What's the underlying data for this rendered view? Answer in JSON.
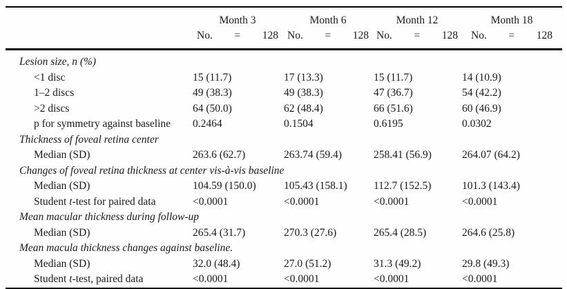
{
  "table": {
    "columns": [
      {
        "month": "Month 3",
        "no_label": "No.",
        "equals": "=",
        "count": "128"
      },
      {
        "month": "Month 6",
        "no_label": "No.",
        "equals": "=",
        "count": "128"
      },
      {
        "month": "Month 12",
        "no_label": "No.",
        "equals": "=",
        "count": "128"
      },
      {
        "month": "Month 18",
        "no_label": "No.",
        "equals": "=",
        "count": "128"
      }
    ],
    "sections": [
      {
        "header": "Lesion size, n (%)",
        "rows": [
          {
            "label": [
              {
                "text": "<1 disc",
                "italic": false
              }
            ],
            "values": [
              "15 (11.7)",
              "17 (13.3)",
              "15 (11.7)",
              "14 (10.9)"
            ]
          },
          {
            "label": [
              {
                "text": "1–2 discs",
                "italic": false
              }
            ],
            "values": [
              "49 (38.3)",
              "49 (38.3)",
              "47 (36.7)",
              "54 (42.2)"
            ]
          },
          {
            "label": [
              {
                "text": ">2 discs",
                "italic": false
              }
            ],
            "values": [
              "64 (50.0)",
              "62 (48.4)",
              "66 (51.6)",
              "60 (46.9)"
            ]
          },
          {
            "label": [
              {
                "text": "p for symmetry against baseline",
                "italic": false
              }
            ],
            "values": [
              "0.2464",
              "0.1504",
              "0.6195",
              "0.0302"
            ]
          }
        ]
      },
      {
        "header": "Thickness of foveal retina center",
        "rows": [
          {
            "label": [
              {
                "text": "Median (SD)",
                "italic": false
              }
            ],
            "values": [
              "263.6 (62.7)",
              "263.74 (59.4)",
              "258.41 (56.9)",
              "264.07 (64.2)"
            ]
          }
        ]
      },
      {
        "header": "Changes of foveal retina thickness at center vis-à-vis baseline",
        "rows": [
          {
            "label": [
              {
                "text": "Median (SD)",
                "italic": false
              }
            ],
            "values": [
              "104.59 (150.0)",
              "105.43 (158.1)",
              "112.7 (152.5)",
              "101.3 (143.4)"
            ]
          },
          {
            "label": [
              {
                "text": "Student ",
                "italic": false
              },
              {
                "text": "t",
                "italic": true
              },
              {
                "text": "-test for paired data",
                "italic": false
              }
            ],
            "values": [
              "<0.0001",
              "<0.0001",
              "<0.0001",
              "<0.0001"
            ]
          }
        ]
      },
      {
        "header": "Mean macular thickness during follow-up",
        "rows": [
          {
            "label": [
              {
                "text": "Median (SD)",
                "italic": false
              }
            ],
            "values": [
              "265.4 (31.7)",
              "270.3 (27.6)",
              "265.4 (28.5)",
              "264.6 (25.8)"
            ]
          }
        ]
      },
      {
        "header": "Mean macula thickness changes against baseline.",
        "rows": [
          {
            "label": [
              {
                "text": "Median (SD)",
                "italic": false
              }
            ],
            "values": [
              "32.0 (48.4)",
              "27.0 (51.2)",
              "31.3 (49.2)",
              "29.8 (49.3)"
            ]
          },
          {
            "label": [
              {
                "text": "Student ",
                "italic": false
              },
              {
                "text": "t",
                "italic": true
              },
              {
                "text": "-test, paired data",
                "italic": false
              }
            ],
            "values": [
              "<0.0001",
              "<0.0001",
              "<0.0001",
              "<0.0001"
            ]
          }
        ]
      }
    ]
  }
}
